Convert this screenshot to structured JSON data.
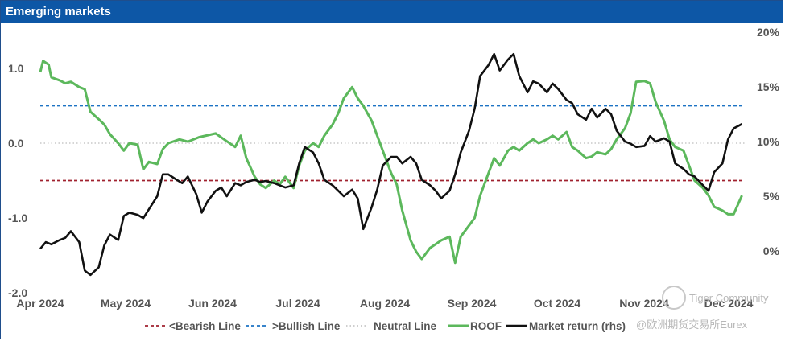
{
  "chart_data": {
    "type": "line",
    "title": "Emerging markets",
    "x_ticks": [
      "Apr 2024",
      "May 2024",
      "Jun 2024",
      "Jul 2024",
      "Aug 2024",
      "Sep 2024",
      "Oct 2024",
      "Nov 2024",
      "Dec 2024"
    ],
    "y_left": {
      "ticks": [
        "1.0",
        "0.0",
        "-1.0",
        "-2.0"
      ],
      "values": [
        1,
        0,
        -1,
        -2
      ],
      "range": [
        -2.0,
        1.5
      ]
    },
    "y_right": {
      "ticks": [
        "20%",
        "15%",
        "10%",
        "5%",
        "0%"
      ],
      "values": [
        20,
        15,
        10,
        5,
        0
      ],
      "range": [
        -4,
        20
      ]
    },
    "reference_lines": [
      {
        "name": "<Bearish Line",
        "value": -0.5,
        "color": "#a0212e",
        "style": "dashed"
      },
      {
        "name": ">Bullish Line",
        "value": 0.5,
        "color": "#1c73c4",
        "style": "dashed"
      },
      {
        "name": "Neutral Line",
        "value": 0.0,
        "color": "#bdbdbd",
        "style": "dotted"
      }
    ],
    "series": [
      {
        "name": "ROOF",
        "axis": "left",
        "color": "#5cb85c",
        "points": [
          [
            "2024-04-01",
            0.95
          ],
          [
            "2024-04-02",
            1.1
          ],
          [
            "2024-04-04",
            1.05
          ],
          [
            "2024-04-05",
            0.88
          ],
          [
            "2024-04-08",
            0.84
          ],
          [
            "2024-04-10",
            0.8
          ],
          [
            "2024-04-12",
            0.82
          ],
          [
            "2024-04-15",
            0.75
          ],
          [
            "2024-04-17",
            0.72
          ],
          [
            "2024-04-19",
            0.42
          ],
          [
            "2024-04-22",
            0.32
          ],
          [
            "2024-04-24",
            0.25
          ],
          [
            "2024-04-26",
            0.12
          ],
          [
            "2024-04-29",
            0.0
          ],
          [
            "2024-05-01",
            -0.1
          ],
          [
            "2024-05-03",
            0.0
          ],
          [
            "2024-05-06",
            -0.02
          ],
          [
            "2024-05-08",
            -0.35
          ],
          [
            "2024-05-10",
            -0.25
          ],
          [
            "2024-05-13",
            -0.28
          ],
          [
            "2024-05-15",
            -0.08
          ],
          [
            "2024-05-17",
            0.0
          ],
          [
            "2024-05-21",
            0.05
          ],
          [
            "2024-05-24",
            0.02
          ],
          [
            "2024-05-28",
            0.08
          ],
          [
            "2024-06-03",
            0.13
          ],
          [
            "2024-06-06",
            0.05
          ],
          [
            "2024-06-10",
            -0.05
          ],
          [
            "2024-06-12",
            0.1
          ],
          [
            "2024-06-14",
            -0.2
          ],
          [
            "2024-06-17",
            -0.45
          ],
          [
            "2024-06-19",
            -0.55
          ],
          [
            "2024-06-21",
            -0.6
          ],
          [
            "2024-06-24",
            -0.5
          ],
          [
            "2024-06-26",
            -0.55
          ],
          [
            "2024-06-28",
            -0.45
          ],
          [
            "2024-07-01",
            -0.6
          ],
          [
            "2024-07-03",
            -0.3
          ],
          [
            "2024-07-05",
            -0.1
          ],
          [
            "2024-07-08",
            0.0
          ],
          [
            "2024-07-10",
            -0.05
          ],
          [
            "2024-07-12",
            0.1
          ],
          [
            "2024-07-15",
            0.25
          ],
          [
            "2024-07-17",
            0.4
          ],
          [
            "2024-07-19",
            0.6
          ],
          [
            "2024-07-22",
            0.75
          ],
          [
            "2024-07-24",
            0.6
          ],
          [
            "2024-07-26",
            0.5
          ],
          [
            "2024-07-29",
            0.3
          ],
          [
            "2024-07-31",
            0.1
          ],
          [
            "2024-08-02",
            -0.1
          ],
          [
            "2024-08-05",
            -0.4
          ],
          [
            "2024-08-07",
            -0.55
          ],
          [
            "2024-08-09",
            -0.9
          ],
          [
            "2024-08-12",
            -1.3
          ],
          [
            "2024-08-14",
            -1.45
          ],
          [
            "2024-08-16",
            -1.55
          ],
          [
            "2024-08-19",
            -1.4
          ],
          [
            "2024-08-21",
            -1.35
          ],
          [
            "2024-08-23",
            -1.3
          ],
          [
            "2024-08-26",
            -1.25
          ],
          [
            "2024-08-28",
            -1.6
          ],
          [
            "2024-08-30",
            -1.25
          ],
          [
            "2024-09-02",
            -1.1
          ],
          [
            "2024-09-04",
            -1.0
          ],
          [
            "2024-09-06",
            -0.7
          ],
          [
            "2024-09-09",
            -0.4
          ],
          [
            "2024-09-11",
            -0.2
          ],
          [
            "2024-09-13",
            -0.3
          ],
          [
            "2024-09-16",
            -0.1
          ],
          [
            "2024-09-18",
            -0.05
          ],
          [
            "2024-09-20",
            -0.1
          ],
          [
            "2024-09-23",
            0.0
          ],
          [
            "2024-09-25",
            0.05
          ],
          [
            "2024-09-27",
            0.0
          ],
          [
            "2024-09-30",
            0.05
          ],
          [
            "2024-10-02",
            0.1
          ],
          [
            "2024-10-04",
            0.05
          ],
          [
            "2024-10-07",
            0.15
          ],
          [
            "2024-10-09",
            -0.05
          ],
          [
            "2024-10-11",
            -0.1
          ],
          [
            "2024-10-14",
            -0.2
          ],
          [
            "2024-10-16",
            -0.18
          ],
          [
            "2024-10-18",
            -0.12
          ],
          [
            "2024-10-21",
            -0.15
          ],
          [
            "2024-10-23",
            -0.08
          ],
          [
            "2024-10-25",
            0.05
          ],
          [
            "2024-10-28",
            0.2
          ],
          [
            "2024-10-30",
            0.4
          ],
          [
            "2024-11-01",
            0.82
          ],
          [
            "2024-11-04",
            0.83
          ],
          [
            "2024-11-06",
            0.8
          ],
          [
            "2024-11-08",
            0.55
          ],
          [
            "2024-11-11",
            0.3
          ],
          [
            "2024-11-13",
            0.05
          ],
          [
            "2024-11-15",
            -0.05
          ],
          [
            "2024-11-18",
            -0.1
          ],
          [
            "2024-11-20",
            -0.3
          ],
          [
            "2024-11-22",
            -0.5
          ],
          [
            "2024-11-25",
            -0.6
          ],
          [
            "2024-11-27",
            -0.7
          ],
          [
            "2024-11-29",
            -0.85
          ],
          [
            "2024-12-02",
            -0.9
          ],
          [
            "2024-12-04",
            -0.95
          ],
          [
            "2024-12-06",
            -0.95
          ],
          [
            "2024-12-09",
            -0.7
          ]
        ]
      },
      {
        "name": "Market return (rhs)",
        "axis": "right",
        "color": "#111111",
        "points": [
          [
            "2024-04-01",
            0.2
          ],
          [
            "2024-04-03",
            0.8
          ],
          [
            "2024-04-05",
            0.6
          ],
          [
            "2024-04-08",
            1.0
          ],
          [
            "2024-04-10",
            1.2
          ],
          [
            "2024-04-12",
            1.8
          ],
          [
            "2024-04-15",
            0.8
          ],
          [
            "2024-04-17",
            -1.8
          ],
          [
            "2024-04-19",
            -2.2
          ],
          [
            "2024-04-22",
            -1.5
          ],
          [
            "2024-04-24",
            0.5
          ],
          [
            "2024-04-26",
            1.5
          ],
          [
            "2024-04-29",
            1.0
          ],
          [
            "2024-05-01",
            3.2
          ],
          [
            "2024-05-03",
            3.5
          ],
          [
            "2024-05-06",
            3.3
          ],
          [
            "2024-05-08",
            3.0
          ],
          [
            "2024-05-10",
            3.8
          ],
          [
            "2024-05-13",
            5.0
          ],
          [
            "2024-05-15",
            7.0
          ],
          [
            "2024-05-17",
            7.0
          ],
          [
            "2024-05-20",
            6.5
          ],
          [
            "2024-05-22",
            6.2
          ],
          [
            "2024-05-24",
            6.8
          ],
          [
            "2024-05-27",
            5.2
          ],
          [
            "2024-05-29",
            3.5
          ],
          [
            "2024-05-31",
            4.5
          ],
          [
            "2024-06-03",
            5.5
          ],
          [
            "2024-06-05",
            5.8
          ],
          [
            "2024-06-07",
            5.0
          ],
          [
            "2024-06-10",
            6.2
          ],
          [
            "2024-06-12",
            6.0
          ],
          [
            "2024-06-14",
            6.3
          ],
          [
            "2024-06-17",
            6.5
          ],
          [
            "2024-06-19",
            6.3
          ],
          [
            "2024-06-21",
            6.4
          ],
          [
            "2024-06-24",
            6.2
          ],
          [
            "2024-06-26",
            6.0
          ],
          [
            "2024-06-28",
            5.8
          ],
          [
            "2024-07-01",
            6.0
          ],
          [
            "2024-07-03",
            8.0
          ],
          [
            "2024-07-05",
            9.5
          ],
          [
            "2024-07-08",
            9.0
          ],
          [
            "2024-07-10",
            8.0
          ],
          [
            "2024-07-12",
            6.5
          ],
          [
            "2024-07-15",
            6.0
          ],
          [
            "2024-07-17",
            5.5
          ],
          [
            "2024-07-19",
            5.0
          ],
          [
            "2024-07-22",
            5.6
          ],
          [
            "2024-07-24",
            4.8
          ],
          [
            "2024-07-26",
            2.0
          ],
          [
            "2024-07-29",
            4.0
          ],
          [
            "2024-07-31",
            5.6
          ],
          [
            "2024-08-02",
            7.8
          ],
          [
            "2024-08-05",
            8.6
          ],
          [
            "2024-08-07",
            8.6
          ],
          [
            "2024-08-09",
            8.0
          ],
          [
            "2024-08-12",
            8.6
          ],
          [
            "2024-08-14",
            8.0
          ],
          [
            "2024-08-16",
            6.5
          ],
          [
            "2024-08-19",
            6.0
          ],
          [
            "2024-08-21",
            5.5
          ],
          [
            "2024-08-23",
            4.8
          ],
          [
            "2024-08-26",
            5.5
          ],
          [
            "2024-08-28",
            7.0
          ],
          [
            "2024-08-30",
            9.0
          ],
          [
            "2024-09-02",
            11.0
          ],
          [
            "2024-09-04",
            13.0
          ],
          [
            "2024-09-06",
            16.0
          ],
          [
            "2024-09-09",
            17.0
          ],
          [
            "2024-09-11",
            18.0
          ],
          [
            "2024-09-13",
            16.5
          ],
          [
            "2024-09-16",
            17.5
          ],
          [
            "2024-09-18",
            18.0
          ],
          [
            "2024-09-20",
            16.0
          ],
          [
            "2024-09-23",
            14.5
          ],
          [
            "2024-09-25",
            15.5
          ],
          [
            "2024-09-27",
            15.3
          ],
          [
            "2024-09-30",
            14.5
          ],
          [
            "2024-10-02",
            15.3
          ],
          [
            "2024-10-04",
            14.8
          ],
          [
            "2024-10-07",
            13.8
          ],
          [
            "2024-10-09",
            13.5
          ],
          [
            "2024-10-11",
            12.5
          ],
          [
            "2024-10-14",
            12.0
          ],
          [
            "2024-10-16",
            13.0
          ],
          [
            "2024-10-18",
            12.2
          ],
          [
            "2024-10-21",
            13.0
          ],
          [
            "2024-10-23",
            12.5
          ],
          [
            "2024-10-25",
            11.0
          ],
          [
            "2024-10-28",
            10.0
          ],
          [
            "2024-10-30",
            9.8
          ],
          [
            "2024-11-01",
            9.5
          ],
          [
            "2024-11-04",
            9.6
          ],
          [
            "2024-11-06",
            10.5
          ],
          [
            "2024-11-08",
            10.0
          ],
          [
            "2024-11-11",
            10.3
          ],
          [
            "2024-11-13",
            10.0
          ],
          [
            "2024-11-15",
            8.0
          ],
          [
            "2024-11-18",
            7.5
          ],
          [
            "2024-11-20",
            7.0
          ],
          [
            "2024-11-22",
            6.8
          ],
          [
            "2024-11-25",
            6.0
          ],
          [
            "2024-11-27",
            5.5
          ],
          [
            "2024-11-29",
            7.2
          ],
          [
            "2024-12-02",
            8.0
          ],
          [
            "2024-12-04",
            10.2
          ],
          [
            "2024-12-06",
            11.2
          ],
          [
            "2024-12-09",
            11.6
          ]
        ]
      }
    ],
    "legend": {
      "placement": "bottom",
      "entries": [
        "<Bearish Line",
        ">Bullish Line",
        "Neutral Line",
        "ROOF",
        "Market return (rhs)"
      ]
    }
  },
  "watermark": {
    "line1": "Tiger Community",
    "line2": "@欧洲期货交易所Eurex"
  }
}
